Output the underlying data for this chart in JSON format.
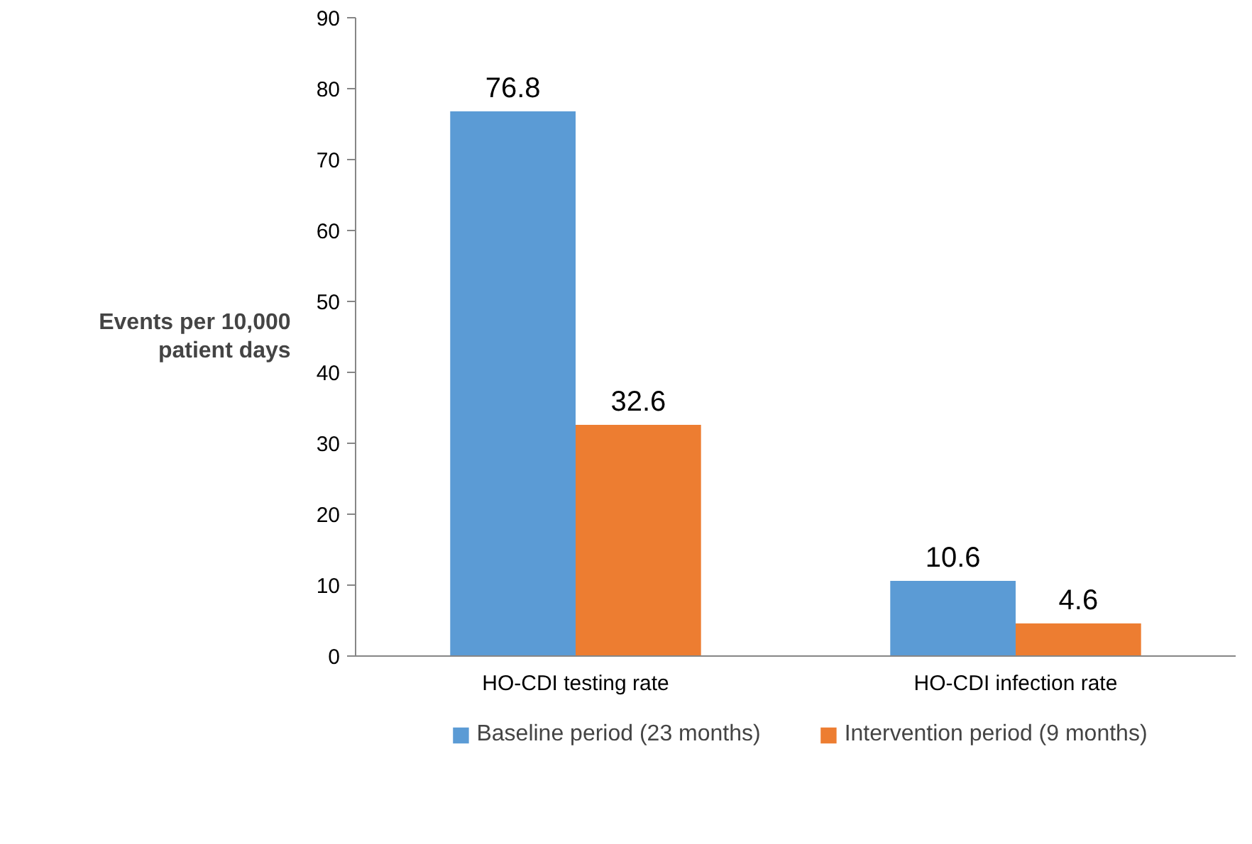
{
  "chart_data": {
    "type": "bar",
    "ylabel": "Events per 10,000 patient days",
    "categories": [
      "HO-CDI testing rate",
      "HO-CDI infection rate"
    ],
    "series": [
      {
        "name": "Baseline period (23 months)",
        "color": "#5b9bd5",
        "values": [
          76.8,
          10.6
        ]
      },
      {
        "name": "Intervention period (9 months)",
        "color": "#ed7d31",
        "values": [
          32.6,
          4.6
        ]
      }
    ],
    "ylim": [
      0,
      90
    ],
    "yticks": [
      0,
      10,
      20,
      30,
      40,
      50,
      60,
      70,
      80,
      90
    ],
    "data_labels": true,
    "grid": false,
    "legend": "bottom"
  }
}
